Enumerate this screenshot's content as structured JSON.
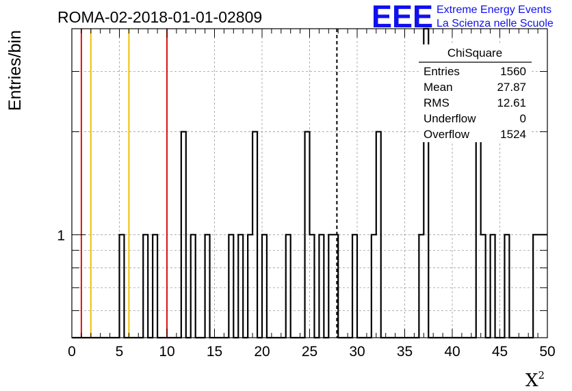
{
  "page": {
    "title": "ROMA-02-2018-01-01-02809",
    "logo_text": "EEE",
    "org_line1": "Extreme Energy Events",
    "org_line2": "La Scienza nelle Scuole"
  },
  "stats_box": {
    "title": "ChiSquare",
    "rows": [
      {
        "label": "Entries",
        "value": "1560"
      },
      {
        "label": "Mean",
        "value": "27.87"
      },
      {
        "label": "RMS",
        "value": "12.61"
      },
      {
        "label": "Underflow",
        "value": "0"
      },
      {
        "label": "Overflow",
        "value": "1524"
      }
    ]
  },
  "chart_data": {
    "type": "bar",
    "subtype": "histogram",
    "title": "ROMA-02-2018-01-01-02809",
    "xlabel": "X",
    "xlabel_superscript": "2",
    "ylabel": "Entries/bin",
    "xlim": [
      0,
      50
    ],
    "ylim": [
      0.5,
      4
    ],
    "y_scale": "log",
    "bin_width": 0.5,
    "x_ticks": [
      0,
      5,
      10,
      15,
      20,
      25,
      30,
      35,
      40,
      45,
      50
    ],
    "y_tick_labels": [
      {
        "value": 1,
        "label": "1"
      }
    ],
    "grid": true,
    "bins": [
      {
        "x": 5.0,
        "count": 1
      },
      {
        "x": 7.5,
        "count": 1
      },
      {
        "x": 8.5,
        "count": 1
      },
      {
        "x": 11.5,
        "count": 2
      },
      {
        "x": 12.5,
        "count": 1
      },
      {
        "x": 14.0,
        "count": 1
      },
      {
        "x": 16.5,
        "count": 1
      },
      {
        "x": 17.5,
        "count": 1
      },
      {
        "x": 18.5,
        "count": 1
      },
      {
        "x": 19.0,
        "count": 2
      },
      {
        "x": 20.0,
        "count": 1
      },
      {
        "x": 22.5,
        "count": 1
      },
      {
        "x": 24.5,
        "count": 2
      },
      {
        "x": 25.0,
        "count": 1
      },
      {
        "x": 26.0,
        "count": 1
      },
      {
        "x": 27.0,
        "count": 1
      },
      {
        "x": 27.5,
        "count": 1
      },
      {
        "x": 29.5,
        "count": 1
      },
      {
        "x": 31.5,
        "count": 1
      },
      {
        "x": 32.0,
        "count": 2
      },
      {
        "x": 36.5,
        "count": 1
      },
      {
        "x": 37.0,
        "count": 4
      },
      {
        "x": 42.5,
        "count": 2
      },
      {
        "x": 43.0,
        "count": 1
      },
      {
        "x": 44.0,
        "count": 1
      },
      {
        "x": 45.5,
        "count": 1
      },
      {
        "x": 48.5,
        "count": 1
      },
      {
        "x": 49.0,
        "count": 1
      },
      {
        "x": 49.5,
        "count": 1
      }
    ],
    "reference_lines": [
      {
        "x": 1,
        "color": "#dd1111",
        "style": "solid"
      },
      {
        "x": 2,
        "color": "#f0c000",
        "style": "solid"
      },
      {
        "x": 6,
        "color": "#f0c000",
        "style": "solid"
      },
      {
        "x": 10,
        "color": "#dd1111",
        "style": "solid"
      },
      {
        "x": 27.87,
        "color": "#000000",
        "style": "dashed"
      }
    ],
    "colors": {
      "histogram": "#000000",
      "grid": "#999999",
      "logo": "#1010ee"
    }
  }
}
